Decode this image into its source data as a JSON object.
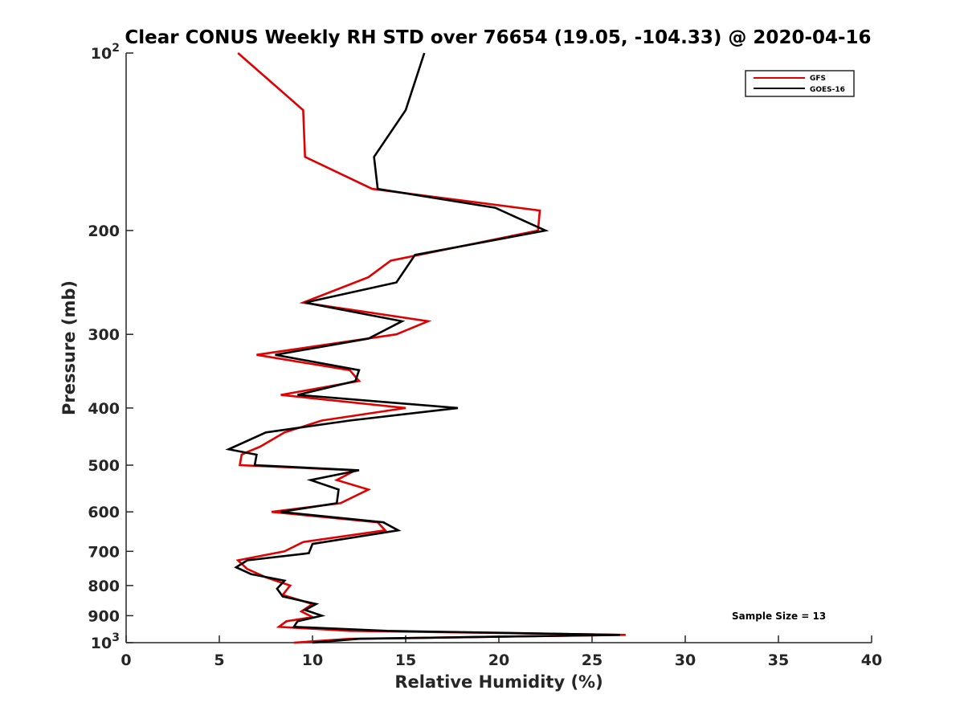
{
  "chart_data": {
    "type": "line",
    "title": "Clear CONUS Weekly RH STD over 76654 (19.05, -104.33) @ 2020-04-16",
    "xlabel": "Relative Humidity (%)",
    "ylabel": "Pressure (mb)",
    "xlim": [
      0,
      40
    ],
    "ylim": [
      100,
      1000
    ],
    "yscale": "log",
    "y_reversed": true,
    "grid": false,
    "legend_position": "top-right",
    "x_ticks": [
      0,
      5,
      10,
      15,
      20,
      25,
      30,
      35,
      40
    ],
    "x_tick_labels": [
      "0",
      "5",
      "10",
      "15",
      "20",
      "25",
      "30",
      "35",
      "40"
    ],
    "y_ticks": [
      100,
      200,
      300,
      400,
      500,
      600,
      700,
      800,
      900,
      1000
    ],
    "y_tick_labels": [
      {
        "base": "10",
        "exp": "2"
      },
      {
        "base": "200",
        "exp": ""
      },
      {
        "base": "300",
        "exp": ""
      },
      {
        "base": "400",
        "exp": ""
      },
      {
        "base": "500",
        "exp": ""
      },
      {
        "base": "600",
        "exp": ""
      },
      {
        "base": "700",
        "exp": ""
      },
      {
        "base": "800",
        "exp": ""
      },
      {
        "base": "900",
        "exp": ""
      },
      {
        "base": "10",
        "exp": "3"
      }
    ],
    "annotation": "Sample Size = 13",
    "series": [
      {
        "name": "GFS",
        "color": "#e00000",
        "points": [
          [
            6.0,
            100
          ],
          [
            9.5,
            125
          ],
          [
            9.6,
            150
          ],
          [
            13.2,
            170
          ],
          [
            22.2,
            185
          ],
          [
            22.1,
            200
          ],
          [
            14.2,
            225
          ],
          [
            13.0,
            240
          ],
          [
            9.5,
            265
          ],
          [
            16.2,
            285
          ],
          [
            14.5,
            300
          ],
          [
            7.0,
            325
          ],
          [
            12.0,
            345
          ],
          [
            12.5,
            360
          ],
          [
            8.3,
            380
          ],
          [
            15.0,
            400
          ],
          [
            10.5,
            420
          ],
          [
            8.5,
            440
          ],
          [
            7.2,
            465
          ],
          [
            6.5,
            475
          ],
          [
            6.2,
            480
          ],
          [
            6.1,
            500
          ],
          [
            12.3,
            510
          ],
          [
            11.3,
            530
          ],
          [
            13.0,
            550
          ],
          [
            11.5,
            580
          ],
          [
            7.8,
            600
          ],
          [
            13.5,
            625
          ],
          [
            13.9,
            645
          ],
          [
            9.5,
            675
          ],
          [
            8.5,
            700
          ],
          [
            6.0,
            725
          ],
          [
            6.5,
            750
          ],
          [
            7.5,
            775
          ],
          [
            8.8,
            800
          ],
          [
            8.4,
            830
          ],
          [
            10.0,
            860
          ],
          [
            9.4,
            885
          ],
          [
            10.0,
            905
          ],
          [
            8.6,
            920
          ],
          [
            8.2,
            940
          ],
          [
            12.0,
            955
          ],
          [
            26.8,
            970
          ],
          [
            12.0,
            985
          ],
          [
            9.0,
            1000
          ]
        ]
      },
      {
        "name": "GOES-16",
        "color": "#000000",
        "points": [
          [
            16.0,
            100
          ],
          [
            15.0,
            125
          ],
          [
            13.3,
            150
          ],
          [
            13.5,
            170
          ],
          [
            19.8,
            183
          ],
          [
            22.5,
            200
          ],
          [
            15.5,
            220
          ],
          [
            14.5,
            245
          ],
          [
            9.6,
            265
          ],
          [
            14.8,
            285
          ],
          [
            13.0,
            305
          ],
          [
            8.0,
            325
          ],
          [
            12.5,
            345
          ],
          [
            12.3,
            360
          ],
          [
            9.2,
            380
          ],
          [
            17.8,
            400
          ],
          [
            12.0,
            420
          ],
          [
            7.5,
            440
          ],
          [
            5.5,
            470
          ],
          [
            7.0,
            480
          ],
          [
            6.9,
            500
          ],
          [
            12.5,
            510
          ],
          [
            9.9,
            530
          ],
          [
            11.4,
            550
          ],
          [
            11.3,
            580
          ],
          [
            8.3,
            600
          ],
          [
            13.8,
            625
          ],
          [
            14.6,
            645
          ],
          [
            10.0,
            680
          ],
          [
            9.8,
            705
          ],
          [
            6.5,
            725
          ],
          [
            5.9,
            745
          ],
          [
            6.7,
            765
          ],
          [
            8.5,
            785
          ],
          [
            8.1,
            810
          ],
          [
            8.4,
            835
          ],
          [
            10.2,
            860
          ],
          [
            9.6,
            880
          ],
          [
            10.5,
            900
          ],
          [
            9.2,
            920
          ],
          [
            9.0,
            940
          ],
          [
            14.0,
            955
          ],
          [
            26.5,
            970
          ],
          [
            12.5,
            985
          ],
          [
            10.0,
            1000
          ]
        ]
      }
    ]
  }
}
